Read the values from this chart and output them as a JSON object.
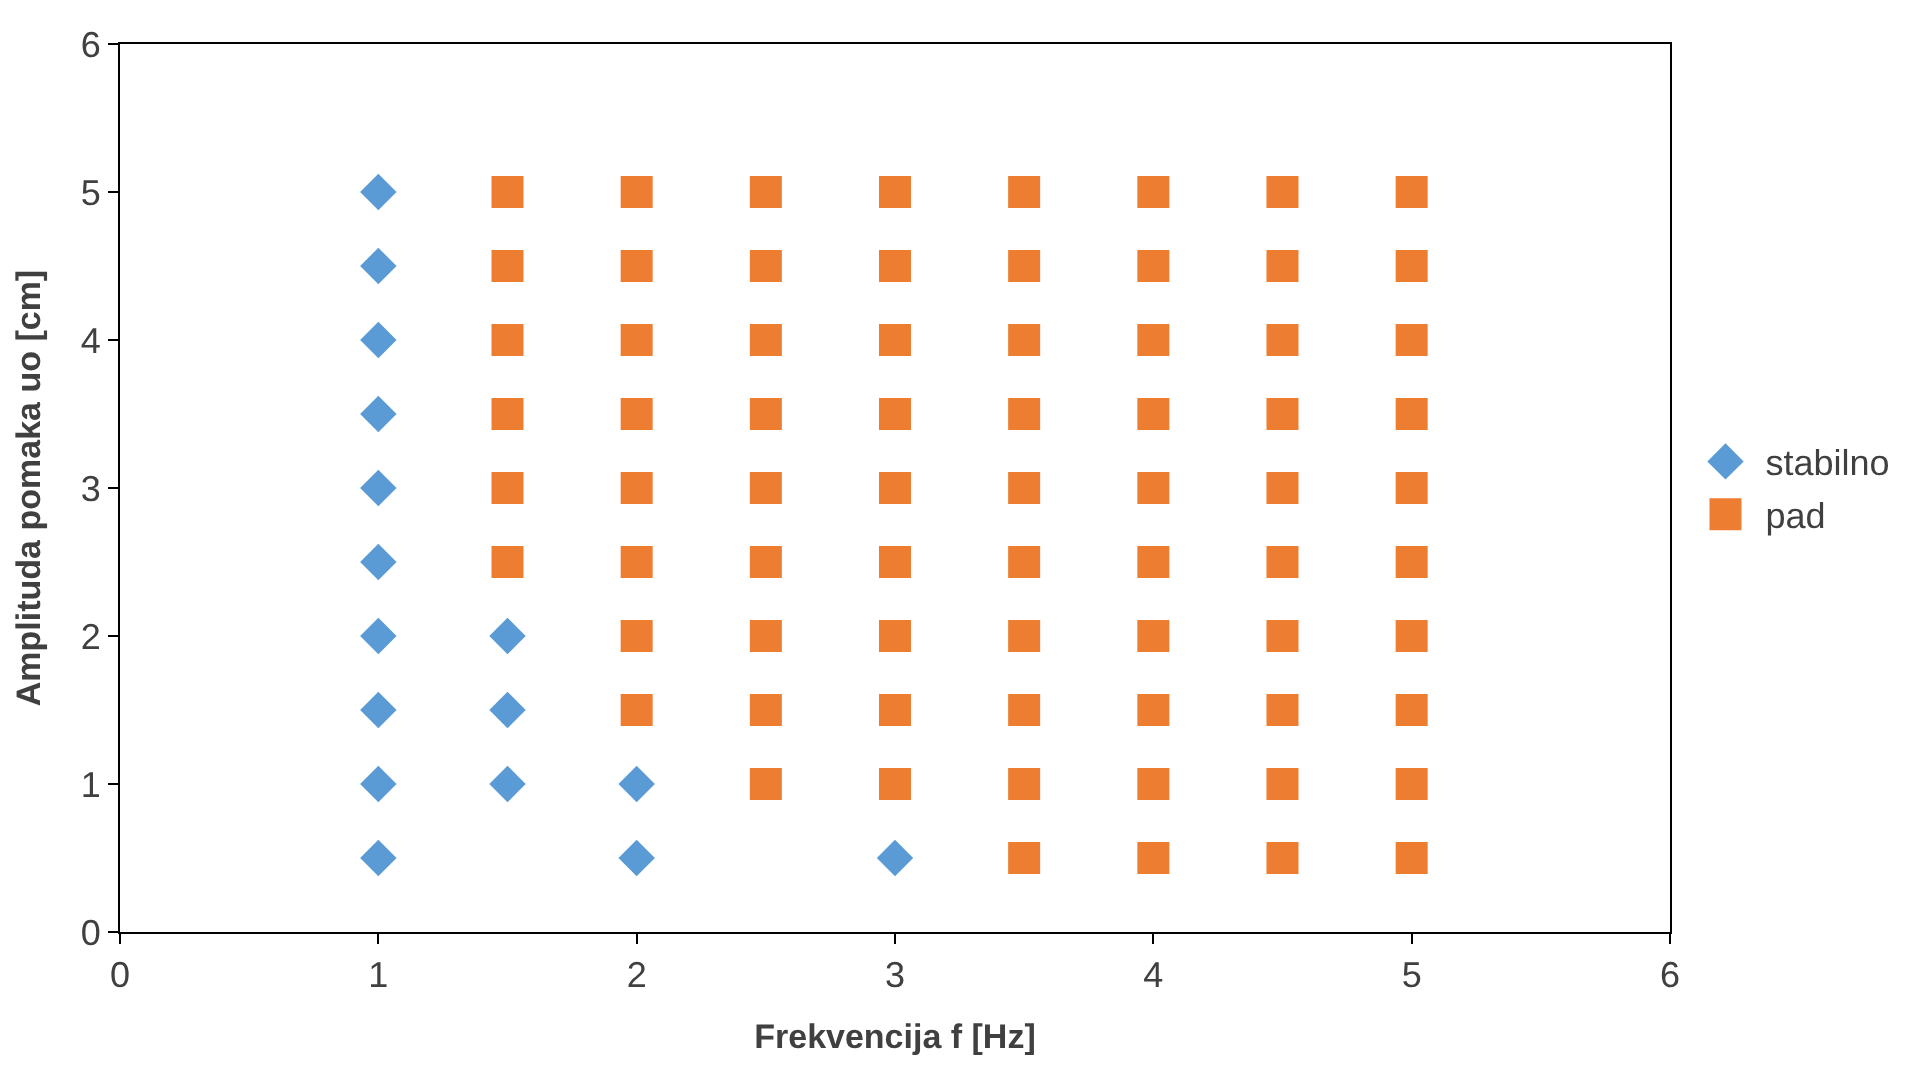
{
  "chart_data": {
    "type": "scatter",
    "xlabel": "Frekvencija f [Hz]",
    "ylabel": "Amplituda pomaka uo [cm]",
    "xlim": [
      0,
      6
    ],
    "xticks": [
      0,
      1,
      2,
      3,
      4,
      5,
      6
    ],
    "ylim": [
      0,
      6
    ],
    "yticks": [
      0,
      1,
      2,
      3,
      4,
      5,
      6
    ],
    "legend": "right",
    "series": [
      {
        "name": "stabilno",
        "color": "#5b9bd5",
        "marker": "diamond",
        "x": [
          1,
          1,
          1,
          1,
          1,
          1,
          1,
          1,
          1,
          1,
          1.5,
          1.5,
          1.5,
          2,
          2,
          3
        ],
        "values": [
          0.5,
          1,
          1.5,
          2,
          2.5,
          3,
          3.5,
          4,
          4.5,
          5,
          1,
          1.5,
          2,
          0.5,
          1,
          0.5
        ]
      },
      {
        "name": "pad",
        "color": "#ed7d31",
        "marker": "square",
        "x": [
          1.5,
          1.5,
          1.5,
          1.5,
          1.5,
          1.5,
          2,
          2,
          2,
          2,
          2,
          2,
          2,
          2,
          2.5,
          2.5,
          2.5,
          2.5,
          2.5,
          2.5,
          2.5,
          2.5,
          2.5,
          3,
          3,
          3,
          3,
          3,
          3,
          3,
          3,
          3,
          3.5,
          3.5,
          3.5,
          3.5,
          3.5,
          3.5,
          3.5,
          3.5,
          3.5,
          3.5,
          4,
          4,
          4,
          4,
          4,
          4,
          4,
          4,
          4,
          4,
          4.5,
          4.5,
          4.5,
          4.5,
          4.5,
          4.5,
          4.5,
          4.5,
          4.5,
          4.5,
          5,
          5,
          5,
          5,
          5,
          5,
          5,
          5,
          5,
          5
        ],
        "values": [
          2.5,
          3,
          3.5,
          4,
          4.5,
          5,
          1.5,
          2,
          2.5,
          3,
          3.5,
          4,
          4.5,
          5,
          1,
          1.5,
          2,
          2.5,
          3,
          3.5,
          4,
          4.5,
          5,
          1,
          1.5,
          2,
          2.5,
          3,
          3.5,
          4,
          4.5,
          5,
          0.5,
          1,
          1.5,
          2,
          2.5,
          3,
          3.5,
          4,
          4.5,
          5,
          0.5,
          1,
          1.5,
          2,
          2.5,
          3,
          3.5,
          4,
          4.5,
          5,
          0.5,
          1,
          1.5,
          2,
          2.5,
          3,
          3.5,
          4,
          4.5,
          5,
          0.5,
          1,
          1.5,
          2,
          2.5,
          3,
          3.5,
          4,
          4.5,
          5
        ]
      }
    ]
  }
}
